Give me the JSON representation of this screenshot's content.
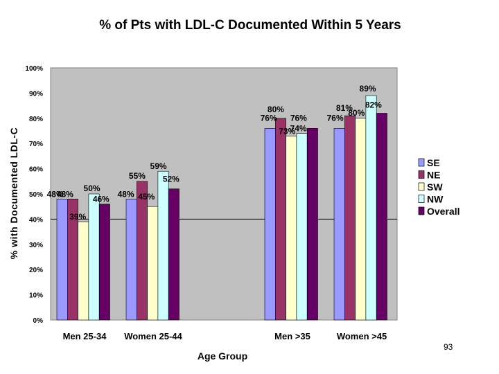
{
  "chart_data": {
    "type": "bar",
    "title": "% of Pts with LDL-C Documented Within 5 Years",
    "xlabel": "Age Group",
    "ylabel": "% with Documented LDL-C",
    "ylim": [
      0,
      100
    ],
    "yticks": [
      "0%",
      "10%",
      "20%",
      "30%",
      "40%",
      "50%",
      "60%",
      "70%",
      "80%",
      "90%",
      "100%"
    ],
    "reference_line": 40,
    "categories": [
      "Men 25-34",
      "Women 25-44",
      "",
      "Men >35",
      "Women >45"
    ],
    "series": [
      {
        "name": "SE",
        "color": "#9999ff",
        "values": [
          48,
          48,
          null,
          76,
          76
        ],
        "labels": [
          "48%",
          "48%",
          "",
          "76%",
          "76%"
        ]
      },
      {
        "name": "NE",
        "color": "#993366",
        "values": [
          48,
          55,
          null,
          80,
          81
        ],
        "labels": [
          "48%",
          "55%",
          "",
          "80%",
          "81%"
        ]
      },
      {
        "name": "SW",
        "color": "#ffffcc",
        "values": [
          39,
          45,
          null,
          73,
          80
        ],
        "labels": [
          "39%",
          "45%",
          "",
          "73%",
          "80%"
        ]
      },
      {
        "name": "NW",
        "color": "#ccffff",
        "values": [
          50,
          59,
          null,
          74,
          89
        ],
        "labels": [
          "50%",
          "59%",
          "",
          "74%",
          "89%"
        ]
      },
      {
        "name": "Overall",
        "color": "#660066",
        "values": [
          46,
          52,
          null,
          76,
          82
        ],
        "labels": [
          "46%",
          "52%",
          "",
          "76%",
          "82%"
        ]
      }
    ],
    "plot_background": "#c0c0c0",
    "legend_position": "right"
  },
  "slide_number": "93"
}
